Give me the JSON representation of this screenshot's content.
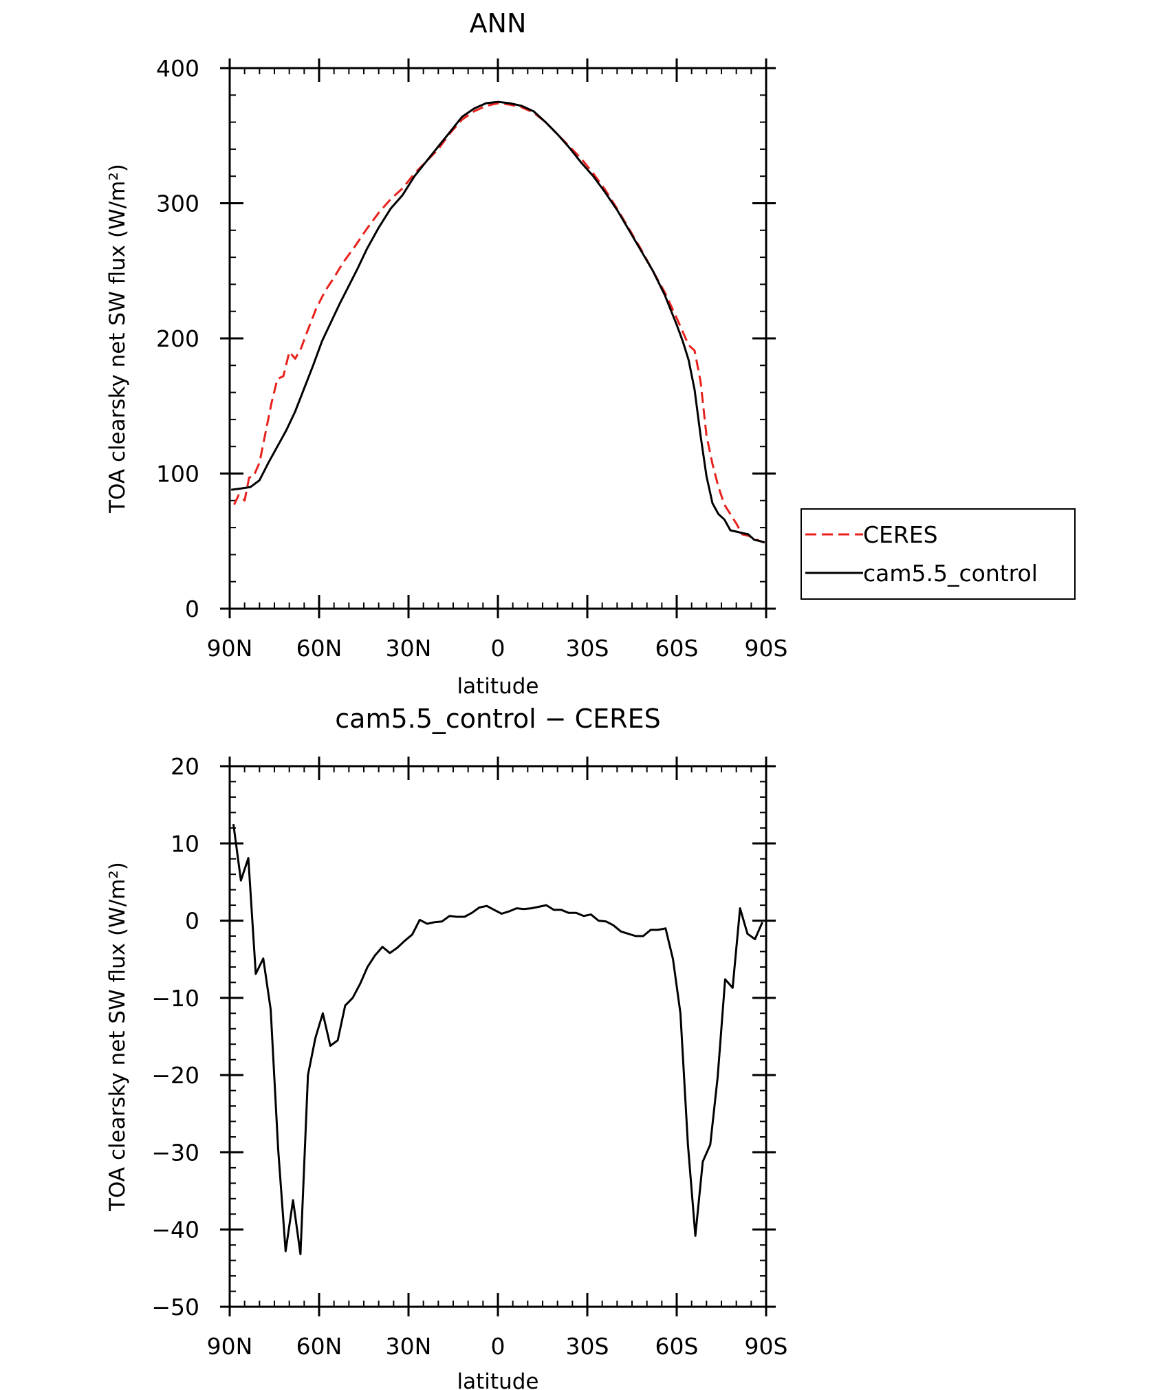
{
  "chart_data": [
    {
      "type": "line",
      "title": "ANN",
      "xlabel": "latitude",
      "ylabel": "TOA clearsky net SW flux (W/m²)",
      "xlim": [
        90,
        -90
      ],
      "ylim": [
        0,
        400
      ],
      "xticks": [
        {
          "value": 90,
          "label": "90N"
        },
        {
          "value": 60,
          "label": "60N"
        },
        {
          "value": 30,
          "label": "30N"
        },
        {
          "value": 0,
          "label": "0"
        },
        {
          "value": -30,
          "label": "30S"
        },
        {
          "value": -60,
          "label": "60S"
        },
        {
          "value": -90,
          "label": "90S"
        }
      ],
      "yticks": [
        {
          "value": 0,
          "label": "0"
        },
        {
          "value": 100,
          "label": "100"
        },
        {
          "value": 200,
          "label": "200"
        },
        {
          "value": 300,
          "label": "300"
        },
        {
          "value": 400,
          "label": "400"
        }
      ],
      "legend": "right",
      "series": [
        {
          "name": "CERES",
          "color": "#e8211c",
          "dash": true,
          "points": [
            [
              88.5,
              77
            ],
            [
              87,
              84
            ],
            [
              85,
              80
            ],
            [
              83.5,
              97
            ],
            [
              82,
              98
            ],
            [
              80,
              108
            ],
            [
              78,
              130
            ],
            [
              76,
              152
            ],
            [
              74,
              170
            ],
            [
              72,
              172
            ],
            [
              70,
              190
            ],
            [
              68,
              185
            ],
            [
              66,
              193
            ],
            [
              64,
              205
            ],
            [
              61,
              222
            ],
            [
              58,
              235
            ],
            [
              55,
              245
            ],
            [
              52,
              256
            ],
            [
              48,
              268
            ],
            [
              44,
              281
            ],
            [
              40,
              293
            ],
            [
              36,
              303
            ],
            [
              32,
              311
            ],
            [
              28,
              322
            ],
            [
              24,
              331
            ],
            [
              20,
              340
            ],
            [
              16,
              352
            ],
            [
              12,
              362
            ],
            [
              8,
              368
            ],
            [
              4,
              372
            ],
            [
              0,
              374
            ],
            [
              -4,
              373
            ],
            [
              -8,
              371
            ],
            [
              -12,
              367
            ],
            [
              -16,
              360
            ],
            [
              -20,
              351
            ],
            [
              -24,
              342
            ],
            [
              -28,
              333
            ],
            [
              -32,
              322
            ],
            [
              -36,
              310
            ],
            [
              -40,
              296
            ],
            [
              -44,
              281
            ],
            [
              -48,
              266
            ],
            [
              -52,
              250
            ],
            [
              -56,
              234
            ],
            [
              -60,
              215
            ],
            [
              -62,
              205
            ],
            [
              -64,
              195
            ],
            [
              -66,
              191
            ],
            [
              -68,
              168
            ],
            [
              -70,
              128
            ],
            [
              -72,
              107
            ],
            [
              -74,
              90
            ],
            [
              -76,
              77
            ],
            [
              -78,
              70
            ],
            [
              -80,
              63
            ],
            [
              -82,
              55
            ],
            [
              -84,
              54
            ],
            [
              -86,
              52
            ],
            [
              -88,
              50
            ],
            [
              -89.5,
              49
            ]
          ]
        },
        {
          "name": "cam5.5_control",
          "color": "#000000",
          "dash": false,
          "points": [
            [
              89.5,
              88
            ],
            [
              86,
              89
            ],
            [
              83,
              90
            ],
            [
              80,
              95
            ],
            [
              77,
              108
            ],
            [
              74,
              120
            ],
            [
              71,
              132
            ],
            [
              68,
              146
            ],
            [
              65,
              163
            ],
            [
              62,
              180
            ],
            [
              59,
              198
            ],
            [
              56,
              212
            ],
            [
              53,
              226
            ],
            [
              50,
              239
            ],
            [
              47,
              252
            ],
            [
              44,
              266
            ],
            [
              40,
              282
            ],
            [
              36,
              296
            ],
            [
              32,
              306
            ],
            [
              28,
              320
            ],
            [
              24,
              331
            ],
            [
              20,
              342
            ],
            [
              16,
              353
            ],
            [
              12,
              364
            ],
            [
              8,
              370
            ],
            [
              4,
              374
            ],
            [
              0,
              375
            ],
            [
              -4,
              374
            ],
            [
              -8,
              372
            ],
            [
              -12,
              368
            ],
            [
              -16,
              360
            ],
            [
              -20,
              351
            ],
            [
              -24,
              341
            ],
            [
              -28,
              330
            ],
            [
              -32,
              320
            ],
            [
              -36,
              308
            ],
            [
              -40,
              295
            ],
            [
              -44,
              280
            ],
            [
              -48,
              265
            ],
            [
              -52,
              250
            ],
            [
              -56,
              232
            ],
            [
              -60,
              210
            ],
            [
              -62,
              198
            ],
            [
              -64,
              184
            ],
            [
              -66,
              162
            ],
            [
              -68,
              128
            ],
            [
              -70,
              98
            ],
            [
              -72,
              78
            ],
            [
              -74,
              70
            ],
            [
              -76,
              66
            ],
            [
              -78,
              58
            ],
            [
              -80,
              57
            ],
            [
              -82,
              56
            ],
            [
              -84,
              55
            ],
            [
              -86,
              51
            ],
            [
              -88,
              50
            ],
            [
              -89.5,
              49
            ]
          ]
        }
      ]
    },
    {
      "type": "line",
      "title": "cam5.5_control − CERES",
      "xlabel": "latitude",
      "ylabel": "TOA clearsky net SW flux (W/m²)",
      "xlim": [
        90,
        -90
      ],
      "ylim": [
        -50,
        20
      ],
      "xticks": [
        {
          "value": 90,
          "label": "90N"
        },
        {
          "value": 60,
          "label": "60N"
        },
        {
          "value": 30,
          "label": "30N"
        },
        {
          "value": 0,
          "label": "0"
        },
        {
          "value": -30,
          "label": "30S"
        },
        {
          "value": -60,
          "label": "60S"
        },
        {
          "value": -90,
          "label": "90S"
        }
      ],
      "yticks": [
        {
          "value": -50,
          "label": "−50"
        },
        {
          "value": -40,
          "label": "−40"
        },
        {
          "value": -30,
          "label": "−30"
        },
        {
          "value": -20,
          "label": "−20"
        },
        {
          "value": -10,
          "label": "−10"
        },
        {
          "value": 0,
          "label": "0"
        },
        {
          "value": 10,
          "label": "10"
        },
        {
          "value": 20,
          "label": "20"
        }
      ],
      "series": [
        {
          "name": "",
          "color": "#000000",
          "dash": false,
          "points": [
            [
              88.75,
              12.5
            ],
            [
              86.25,
              5.2
            ],
            [
              83.75,
              8.1
            ],
            [
              81.25,
              -6.9
            ],
            [
              78.75,
              -4.9
            ],
            [
              76.25,
              -11.5
            ],
            [
              73.75,
              -29.5
            ],
            [
              71.25,
              -42.8
            ],
            [
              68.75,
              -36.2
            ],
            [
              66.25,
              -43.2
            ],
            [
              63.75,
              -20.0
            ],
            [
              61.25,
              -15.2
            ],
            [
              58.75,
              -12.0
            ],
            [
              56.25,
              -16.2
            ],
            [
              53.75,
              -15.5
            ],
            [
              51.25,
              -11.0
            ],
            [
              48.75,
              -10.0
            ],
            [
              46.25,
              -8.2
            ],
            [
              43.75,
              -6.0
            ],
            [
              41.25,
              -4.5
            ],
            [
              38.75,
              -3.4
            ],
            [
              36.25,
              -4.2
            ],
            [
              33.75,
              -3.5
            ],
            [
              31.25,
              -2.6
            ],
            [
              28.75,
              -1.8
            ],
            [
              26.25,
              0.1
            ],
            [
              23.75,
              -0.4
            ],
            [
              21.25,
              -0.2
            ],
            [
              18.75,
              -0.1
            ],
            [
              16.25,
              0.6
            ],
            [
              13.75,
              0.5
            ],
            [
              11.25,
              0.5
            ],
            [
              8.75,
              1.0
            ],
            [
              6.25,
              1.7
            ],
            [
              3.75,
              1.9
            ],
            [
              1.25,
              1.4
            ],
            [
              -1.25,
              0.9
            ],
            [
              -3.75,
              1.2
            ],
            [
              -6.25,
              1.6
            ],
            [
              -8.75,
              1.5
            ],
            [
              -11.25,
              1.6
            ],
            [
              -13.75,
              1.8
            ],
            [
              -16.25,
              2.0
            ],
            [
              -18.75,
              1.4
            ],
            [
              -21.25,
              1.4
            ],
            [
              -23.75,
              1.0
            ],
            [
              -26.25,
              1.0
            ],
            [
              -28.75,
              0.6
            ],
            [
              -31.25,
              0.8
            ],
            [
              -33.75,
              0.0
            ],
            [
              -36.25,
              -0.1
            ],
            [
              -38.75,
              -0.6
            ],
            [
              -41.25,
              -1.4
            ],
            [
              -43.75,
              -1.7
            ],
            [
              -46.25,
              -2.0
            ],
            [
              -48.75,
              -2.0
            ],
            [
              -51.25,
              -1.2
            ],
            [
              -53.75,
              -1.2
            ],
            [
              -56.25,
              -1.0
            ],
            [
              -58.75,
              -5.0
            ],
            [
              -61.25,
              -12.0
            ],
            [
              -63.75,
              -29.0
            ],
            [
              -66.25,
              -40.8
            ],
            [
              -68.75,
              -31.2
            ],
            [
              -71.25,
              -29.0
            ],
            [
              -73.75,
              -20.2
            ],
            [
              -76.25,
              -7.6
            ],
            [
              -78.75,
              -8.7
            ],
            [
              -81.25,
              1.6
            ],
            [
              -83.75,
              -1.7
            ],
            [
              -86.25,
              -2.4
            ],
            [
              -88.75,
              -0.2
            ]
          ]
        }
      ]
    }
  ]
}
